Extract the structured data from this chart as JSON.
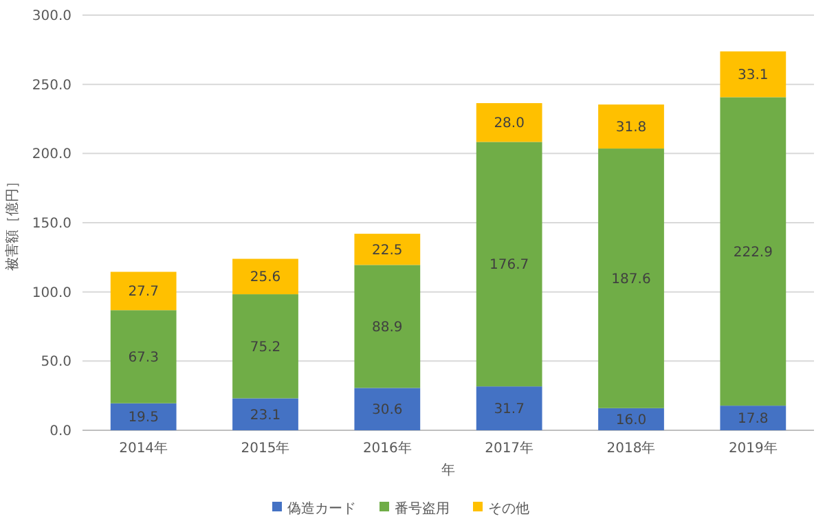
{
  "chart_data": {
    "type": "bar",
    "stacked": true,
    "xlabel": "年",
    "ylabel": "被害額［億円］",
    "categories": [
      "2014年",
      "2015年",
      "2016年",
      "2017年",
      "2018年",
      "2019年"
    ],
    "series": [
      {
        "name": "偽造カード",
        "color": "#4472c4",
        "values": [
          19.5,
          23.1,
          30.6,
          31.7,
          16.0,
          17.8
        ],
        "value_labels": [
          "19.5",
          "23.1",
          "30.6",
          "31.7",
          "16.0",
          "17.8"
        ]
      },
      {
        "name": "番号盗用",
        "color": "#70ad47",
        "values": [
          67.3,
          75.2,
          88.9,
          176.7,
          187.6,
          222.9
        ],
        "value_labels": [
          "67.3",
          "75.2",
          "88.9",
          "176.7",
          "187.6",
          "222.9"
        ]
      },
      {
        "name": "その他",
        "color": "#ffc000",
        "values": [
          27.7,
          25.6,
          22.5,
          28.0,
          31.8,
          33.1
        ],
        "value_labels": [
          "27.7",
          "25.6",
          "22.5",
          "28.0",
          "31.8",
          "33.1"
        ]
      }
    ],
    "ylim": [
      0,
      300
    ],
    "yticks": [
      {
        "value": 0,
        "label": "0.0"
      },
      {
        "value": 50,
        "label": "50.0"
      },
      {
        "value": 100,
        "label": "100.0"
      },
      {
        "value": 150,
        "label": "150.0"
      },
      {
        "value": 200,
        "label": "200.0"
      },
      {
        "value": 250,
        "label": "250.0"
      },
      {
        "value": 300,
        "label": "300.0"
      }
    ],
    "grid": "y",
    "legend": "bottom"
  }
}
